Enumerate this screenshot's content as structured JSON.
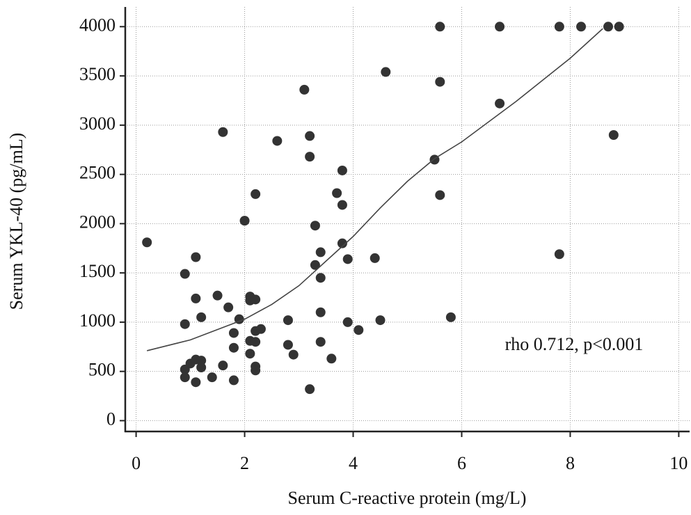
{
  "chart_data": {
    "type": "scatter",
    "xlabel": "Serum C-reactive protein (mg/L)",
    "ylabel": "Serum YKL-40 (pg/mL)",
    "annotation": "rho 0.712, p<0.001",
    "xlim": [
      -0.2,
      10.2
    ],
    "ylim": [
      -110,
      4200
    ],
    "xticks": [
      0,
      2,
      4,
      6,
      8,
      10
    ],
    "yticks": [
      0,
      500,
      1000,
      1500,
      2000,
      2500,
      3000,
      3500,
      4000
    ],
    "grid": true,
    "series": [
      {
        "mode": "markers",
        "color": "#333333",
        "x": [
          0.2,
          0.9,
          1.1,
          0.9,
          1.1,
          1.2,
          0.9,
          0.9,
          1.0,
          1.1,
          1.2,
          1.2,
          1.1,
          1.4,
          1.5,
          1.6,
          1.6,
          1.7,
          1.8,
          1.8,
          1.8,
          1.9,
          2.0,
          2.1,
          2.1,
          2.2,
          2.1,
          2.2,
          2.1,
          2.2,
          2.2,
          2.2,
          2.2,
          2.3,
          2.6,
          2.8,
          2.8,
          2.9,
          3.1,
          3.2,
          3.2,
          3.2,
          3.3,
          3.3,
          3.4,
          3.4,
          3.4,
          3.4,
          3.6,
          3.7,
          3.8,
          3.8,
          3.8,
          3.9,
          3.9,
          4.1,
          4.4,
          4.5,
          4.6,
          5.5,
          5.6,
          5.6,
          5.6,
          5.8,
          6.7,
          6.7,
          7.8,
          7.8,
          8.2,
          8.7,
          8.8,
          8.9
        ],
        "values": [
          1810,
          1490,
          1660,
          980,
          1240,
          1050,
          520,
          440,
          580,
          620,
          610,
          540,
          390,
          440,
          1270,
          2930,
          560,
          1150,
          890,
          740,
          410,
          1030,
          2030,
          1260,
          1220,
          1230,
          810,
          800,
          680,
          550,
          510,
          2300,
          910,
          930,
          2840,
          1020,
          770,
          670,
          3360,
          2890,
          2680,
          320,
          1980,
          1580,
          1710,
          1450,
          1100,
          800,
          630,
          2310,
          2540,
          2190,
          1800,
          1640,
          1000,
          920,
          1650,
          1020,
          3540,
          2650,
          4000,
          3440,
          2290,
          1050,
          4000,
          3220,
          4000,
          1690,
          4000,
          4000,
          2900,
          4000
        ]
      },
      {
        "mode": "line",
        "color": "#444444",
        "x": [
          0.2,
          1,
          2,
          2.5,
          3,
          3.5,
          4,
          4.5,
          5,
          5.5,
          6,
          7,
          8,
          8.6
        ],
        "values": [
          710,
          820,
          1030,
          1180,
          1370,
          1620,
          1870,
          2160,
          2430,
          2660,
          2830,
          3240,
          3680,
          3980
        ]
      }
    ]
  }
}
